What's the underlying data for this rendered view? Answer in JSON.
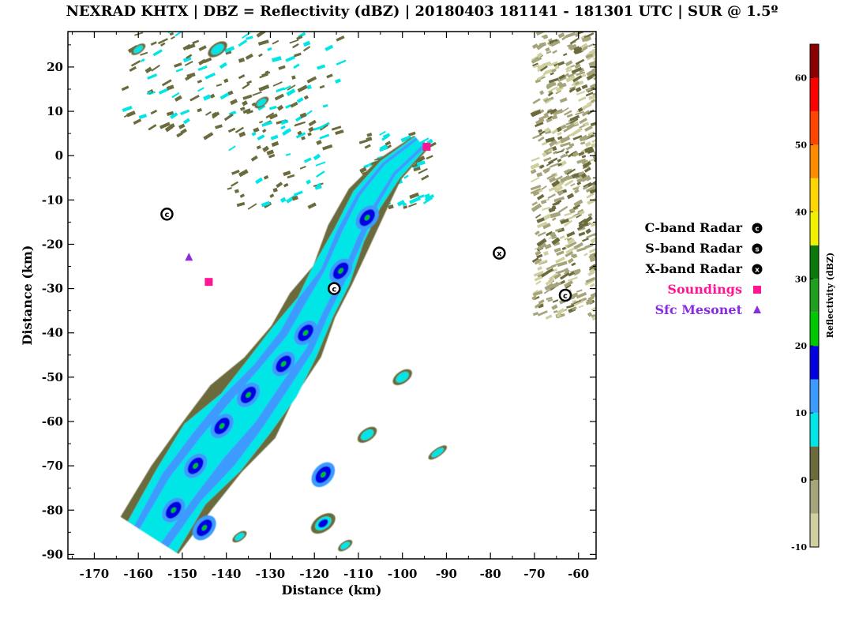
{
  "title": "NEXRAD KHTX | DBZ = Reflectivity (dBZ) | 20180403 181141 - 181301 UTC | SUR @ 1.5º",
  "chart_data": {
    "type": "map",
    "xlabel": "Distance (km)",
    "ylabel": "Distance (km)",
    "xlim": [
      -176,
      -56
    ],
    "ylim": [
      -91,
      28
    ],
    "xticks": [
      -170,
      -160,
      -150,
      -140,
      -130,
      -120,
      -110,
      -100,
      -90,
      -80,
      -70,
      -60
    ],
    "yticks": [
      20,
      10,
      0,
      -10,
      -20,
      -30,
      -40,
      -50,
      -60,
      -70,
      -80,
      -90
    ],
    "colorbar": {
      "label": "Reflectivity (dBZ)",
      "ticks": [
        60,
        50,
        40,
        30,
        20,
        10,
        0,
        -10
      ],
      "range": [
        -10,
        65
      ],
      "colors": [
        {
          "from": -10,
          "to": -5,
          "color": "#cfcfa0"
        },
        {
          "from": -5,
          "to": 0,
          "color": "#a6a47a"
        },
        {
          "from": 0,
          "to": 5,
          "color": "#6b6b3e"
        },
        {
          "from": 5,
          "to": 10,
          "color": "#00e6e6"
        },
        {
          "from": 10,
          "to": 15,
          "color": "#3c9bff"
        },
        {
          "from": 15,
          "to": 20,
          "color": "#0000e0"
        },
        {
          "from": 20,
          "to": 25,
          "color": "#00c800"
        },
        {
          "from": 25,
          "to": 30,
          "color": "#1ea01e"
        },
        {
          "from": 30,
          "to": 35,
          "color": "#0a780a"
        },
        {
          "from": 35,
          "to": 40,
          "color": "#f0f000"
        },
        {
          "from": 40,
          "to": 45,
          "color": "#ffd700"
        },
        {
          "from": 45,
          "to": 50,
          "color": "#ff8c00"
        },
        {
          "from": 50,
          "to": 55,
          "color": "#ff4500"
        },
        {
          "from": 55,
          "to": 60,
          "color": "#ff0000"
        },
        {
          "from": 60,
          "to": 65,
          "color": "#8b0000"
        }
      ]
    },
    "markers": [
      {
        "type": "C-band Radar",
        "symbol": "C",
        "x": -153.5,
        "y": -13.2
      },
      {
        "type": "C-band Radar",
        "symbol": "C",
        "x": -63,
        "y": -31.5
      },
      {
        "type": "C-band Radar",
        "symbol": "C",
        "x": -115.5,
        "y": -30
      },
      {
        "type": "X-band Radar",
        "symbol": "X",
        "x": -78,
        "y": -22
      },
      {
        "type": "Soundings",
        "symbol": "square",
        "x": -144,
        "y": -28.5
      },
      {
        "type": "Soundings",
        "symbol": "square",
        "x": -94.5,
        "y": 2
      },
      {
        "type": "Sfc Mesonet",
        "symbol": "triangle",
        "x": -148.5,
        "y": -23
      }
    ],
    "legend": {
      "placement": "right",
      "items": [
        {
          "label": "C-band Radar",
          "symbol": "C",
          "color": "#000000"
        },
        {
          "label": "S-band Radar",
          "symbol": "S",
          "color": "#000000"
        },
        {
          "label": "X-band Radar",
          "symbol": "X",
          "color": "#000000"
        },
        {
          "label": "Soundings",
          "symbol": "square",
          "color": "#ff1493"
        },
        {
          "label": "Sfc Mesonet",
          "symbol": "triangle",
          "color": "#8a2be2"
        }
      ]
    },
    "band": {
      "centerline": [
        [
          -157,
          -86
        ],
        [
          -150,
          -75
        ],
        [
          -143,
          -66
        ],
        [
          -136,
          -58
        ],
        [
          -130,
          -50
        ],
        [
          -124,
          -42
        ],
        [
          -120,
          -34
        ],
        [
          -116,
          -27
        ],
        [
          -112,
          -18
        ],
        [
          -108,
          -10
        ],
        [
          -103,
          -3
        ],
        [
          -96,
          3
        ]
      ],
      "halfwidth_km": [
        6.5,
        7.5,
        8,
        8,
        7,
        6,
        5,
        4.5,
        4.2,
        4,
        3,
        2
      ],
      "cores": [
        [
          -152,
          -80
        ],
        [
          -147,
          -70
        ],
        [
          -141,
          -61
        ],
        [
          -135,
          -54
        ],
        [
          -127,
          -47
        ],
        [
          -122,
          -40
        ],
        [
          -114,
          -26
        ],
        [
          -108,
          -14
        ],
        [
          -118,
          -72
        ],
        [
          -145,
          -84
        ]
      ]
    },
    "cells": [
      {
        "x": -142,
        "y": 24,
        "w": 4,
        "h": 3,
        "level": 1
      },
      {
        "x": -160,
        "y": 24,
        "w": 3,
        "h": 2,
        "level": 1
      },
      {
        "x": -132,
        "y": 12,
        "w": 3,
        "h": 2,
        "level": 1
      },
      {
        "x": -100,
        "y": -50,
        "w": 4,
        "h": 3,
        "level": 1
      },
      {
        "x": -108,
        "y": -63,
        "w": 4,
        "h": 3,
        "level": 1
      },
      {
        "x": -92,
        "y": -67,
        "w": 4,
        "h": 2,
        "level": 1
      },
      {
        "x": -118,
        "y": -83,
        "w": 5,
        "h": 4,
        "level": 2
      },
      {
        "x": -113,
        "y": -88,
        "w": 3,
        "h": 2,
        "level": 1
      },
      {
        "x": -137,
        "y": -86,
        "w": 3,
        "h": 2,
        "level": 1
      }
    ]
  }
}
